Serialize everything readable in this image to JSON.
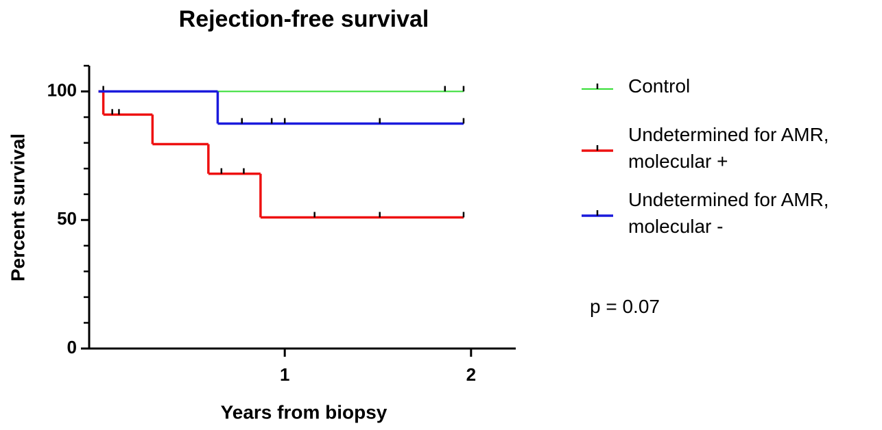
{
  "chart_data": {
    "type": "survival",
    "title": "Rejection-free survival",
    "x_label": "Years from biopsy",
    "y_label": "Percent survival",
    "annotation": "p = 0.07",
    "xlim": [
      -0.05,
      2.24
    ],
    "xticks": [
      1,
      2
    ],
    "ylim": [
      0,
      110
    ],
    "yticks": [
      0,
      50,
      100
    ],
    "yminorticks": [
      10,
      20,
      30,
      40,
      60,
      70,
      80,
      90,
      110
    ],
    "series": [
      {
        "name": "Control",
        "color": "#33dd33",
        "x": [
          0,
          1.96
        ],
        "values": [
          100,
          100
        ],
        "censor_x": [
          0.026,
          1.86,
          1.96
        ],
        "censor_values": [
          100,
          100,
          100
        ]
      },
      {
        "name": "Undetermined for AMR, molecular +",
        "color": "#ee1111",
        "x": [
          0,
          0.026,
          0.29,
          0.59,
          0.87,
          1.96
        ],
        "values": [
          100,
          91,
          79.5,
          68,
          51,
          51
        ],
        "censor_x": [
          0.074,
          0.11,
          0.66,
          0.78,
          1.16,
          1.51,
          1.96
        ],
        "censor_values": [
          91,
          91,
          68,
          68,
          51,
          51,
          51
        ]
      },
      {
        "name": "Undetermined for AMR, molecular -",
        "color": "#1a1adc",
        "x": [
          0,
          0.64,
          1.96
        ],
        "values": [
          100,
          87.5,
          87.5
        ],
        "censor_x": [
          0.77,
          0.93,
          1.0,
          1.51,
          1.96
        ],
        "censor_values": [
          87.5,
          87.5,
          87.5,
          87.5,
          87.5
        ]
      }
    ]
  }
}
